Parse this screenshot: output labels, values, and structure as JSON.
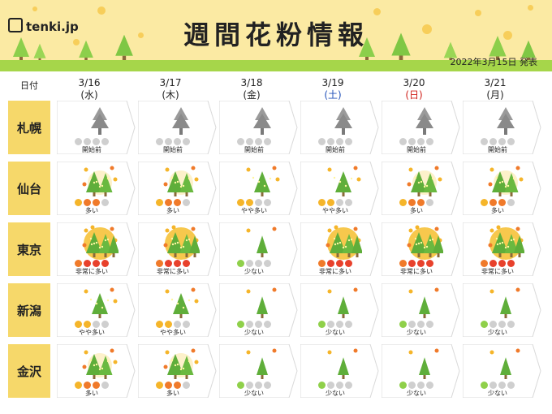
{
  "header": {
    "logo": "tenki.jp",
    "title": "週間花粉情報",
    "published": "2022年3月15日 発表"
  },
  "table": {
    "corner_label": "日付",
    "days": [
      {
        "date": "3/16",
        "weekday": "(水)",
        "weekday_color": "#222222"
      },
      {
        "date": "3/17",
        "weekday": "(木)",
        "weekday_color": "#222222"
      },
      {
        "date": "3/18",
        "weekday": "(金)",
        "weekday_color": "#222222"
      },
      {
        "date": "3/19",
        "weekday": "(土)",
        "weekday_color": "#1f4fb8"
      },
      {
        "date": "3/20",
        "weekday": "(日)",
        "weekday_color": "#d0201a"
      },
      {
        "date": "3/21",
        "weekday": "(月)",
        "weekday_color": "#222222"
      }
    ],
    "level_dots": {
      "開始前": 0,
      "少ない": 1,
      "やや多い": 2,
      "多い": 3,
      "非常に多い": 4
    },
    "colors": {
      "dot_off": "#cfcfcf",
      "dot_low": "#8fd04a",
      "dot_mid": "#f5b52a",
      "dot_high": "#f07a2a",
      "dot_vhigh": "#e8412c",
      "row_label_bg": "#f6d86a",
      "header_bg": "#fbeaa3"
    },
    "rows": [
      {
        "city": "札幌",
        "levels": [
          "開始前",
          "開始前",
          "開始前",
          "開始前",
          "開始前",
          "開始前"
        ]
      },
      {
        "city": "仙台",
        "levels": [
          "多い",
          "多い",
          "やや多い",
          "やや多い",
          "多い",
          "多い"
        ]
      },
      {
        "city": "東京",
        "levels": [
          "非常に多い",
          "非常に多い",
          "少ない",
          "非常に多い",
          "非常に多い",
          "非常に多い"
        ]
      },
      {
        "city": "新潟",
        "levels": [
          "やや多い",
          "やや多い",
          "少ない",
          "少ない",
          "少ない",
          "少ない"
        ]
      },
      {
        "city": "金沢",
        "levels": [
          "多い",
          "多い",
          "少ない",
          "少ない",
          "少ない",
          "少ない"
        ]
      }
    ]
  }
}
